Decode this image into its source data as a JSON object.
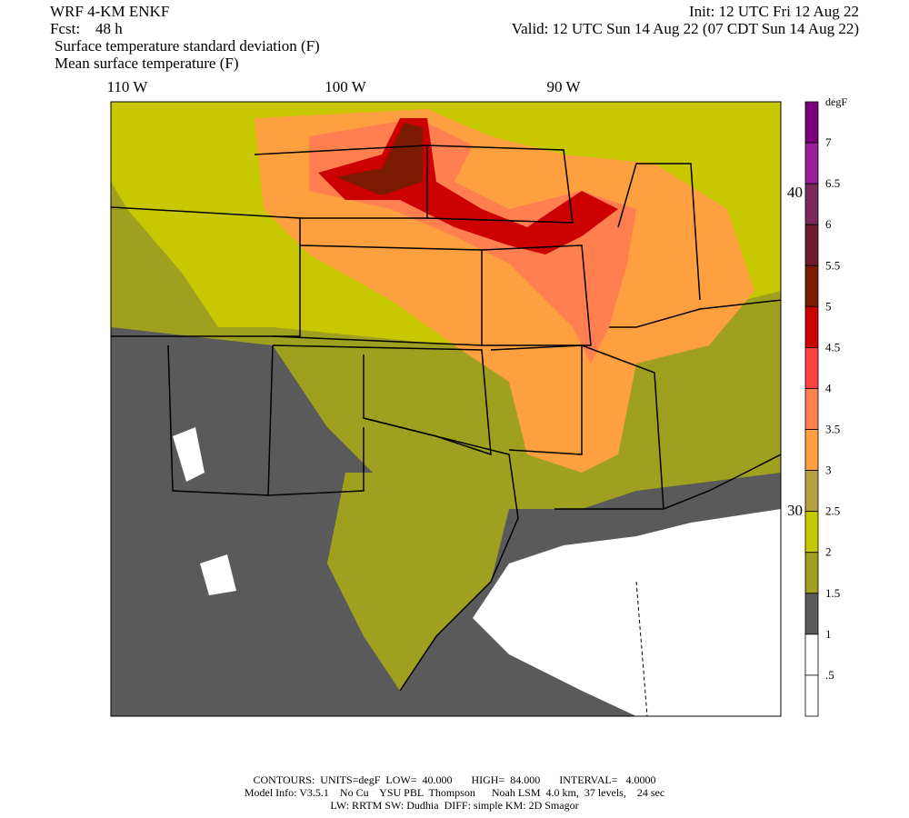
{
  "header": {
    "model": "WRF 4-KM ENKF",
    "init": "Init: 12 UTC Fri 12 Aug 22",
    "forecast": "Fcst:    48 h",
    "valid": "Valid: 12 UTC Sun 14 Aug 22 (07 CDT Sun 14 Aug 22)",
    "fields": [
      "Surface temperature standard deviation (F)",
      "Mean surface temperature (F)"
    ]
  },
  "map": {
    "lon_labels": [
      "110 W",
      "100 W",
      "90 W"
    ],
    "lat_labels": [
      "40 N",
      "30 N"
    ]
  },
  "colorbar": {
    "units": "degF",
    "labels": [
      "7",
      "6.5",
      "6",
      "5.5",
      "5",
      "4.5",
      "4",
      "3.5",
      "3",
      "2.5",
      "2",
      "1.5",
      "1",
      ".5"
    ],
    "colors": [
      "#7a007a",
      "#9a1e9a",
      "#7a2a5a",
      "#6e1a2e",
      "#7a1a00",
      "#cc0000",
      "#ff4040",
      "#ff7f50",
      "#ffa040",
      "#b8a040",
      "#c8c800",
      "#a0a020",
      "#5a5a5a",
      "#ffffff",
      "#ffffff"
    ]
  },
  "footer": {
    "lines": [
      "CONTOURS:  UNITS=degF  LOW=  40.000       HIGH=  84.000       INTERVAL=   4.0000",
      "Model Info: V3.5.1    No Cu    YSU PBL  Thompson      Noah LSM  4.0 km,  37 levels,    24 sec",
      "LW: RRTM SW: Dudhia  DIFF: simple KM: 2D Smagor"
    ]
  }
}
